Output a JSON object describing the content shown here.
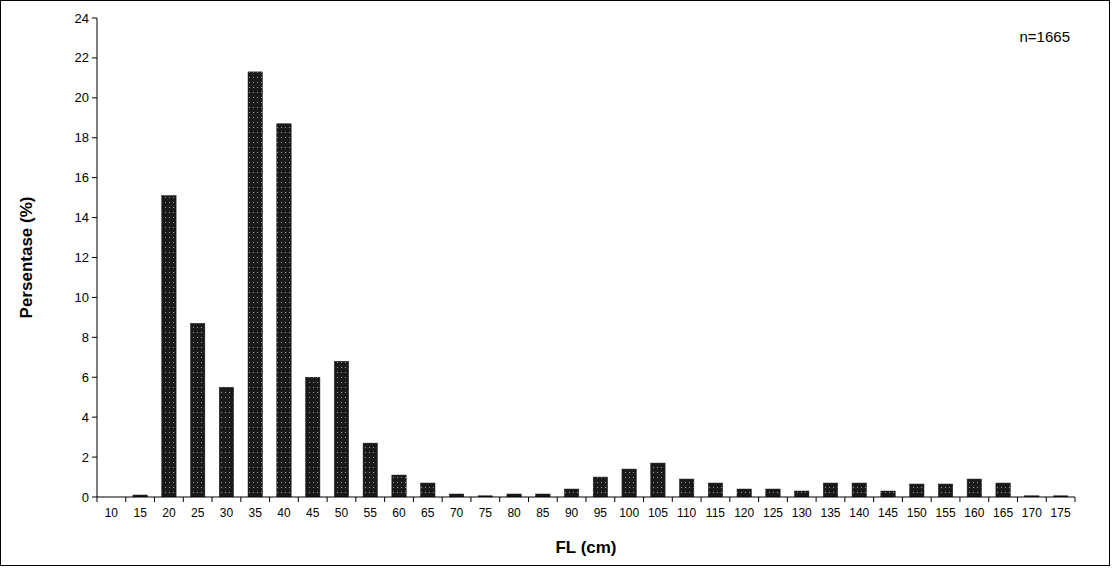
{
  "chart_data": {
    "type": "bar",
    "x_label": "FL (cm)",
    "y_label": "Persentase (%)",
    "annotation": "n=1665",
    "categories": [
      "10",
      "15",
      "20",
      "25",
      "30",
      "35",
      "40",
      "45",
      "50",
      "55",
      "60",
      "65",
      "70",
      "75",
      "80",
      "85",
      "90",
      "95",
      "100",
      "105",
      "110",
      "115",
      "120",
      "125",
      "130",
      "135",
      "140",
      "145",
      "150",
      "155",
      "160",
      "165",
      "170",
      "175"
    ],
    "values": [
      0,
      0.1,
      15.1,
      8.7,
      5.5,
      21.3,
      18.7,
      6.0,
      6.8,
      2.7,
      1.1,
      0.7,
      0.15,
      0.06,
      0.15,
      0.15,
      0.4,
      1.0,
      1.4,
      1.7,
      0.9,
      0.7,
      0.4,
      0.4,
      0.3,
      0.7,
      0.7,
      0.3,
      0.65,
      0.65,
      0.9,
      0.7,
      0.06,
      0.06
    ],
    "color": "#1a1a1a",
    "ylim": [
      0,
      24
    ],
    "yticks": [
      0,
      2,
      4,
      6,
      8,
      10,
      12,
      14,
      16,
      18,
      20,
      22,
      24
    ],
    "grid": false
  }
}
